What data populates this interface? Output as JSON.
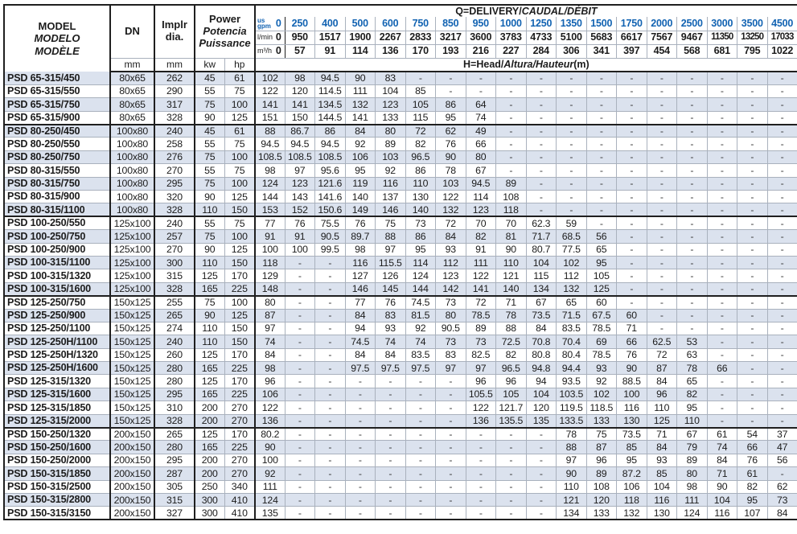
{
  "colors": {
    "accent_blue": "#1263b2",
    "row_shade": "#dbe2ee",
    "grid_light": "#a9b1bd",
    "border_dark": "#1f1f1f"
  },
  "table": {
    "header": {
      "model_lines": [
        "MODEL",
        "MODELO",
        "MODÈLE"
      ],
      "dn_label": "DN",
      "dn_unit": "mm",
      "impeller_lines": [
        "Implr",
        "dia."
      ],
      "impeller_unit": "mm",
      "power_lines": [
        "Power",
        "Potencia",
        "Puissance"
      ],
      "power_unit_kw": "kw",
      "power_unit_hp": "hp",
      "q_title_plain": "Q=DELIVERY/",
      "q_title_italic": "CAUDAL/DÉBIT",
      "h_title_plain": "H=Head/",
      "h_title_italic": "Altura/Hauteur",
      "h_title_suffix": "(m)",
      "gpm_label_line1": "us",
      "gpm_label_line2": "gpm",
      "lmin_label": "l/min",
      "m3h_label": "m³/h",
      "flow_gpm": [
        "0",
        "250",
        "400",
        "500",
        "600",
        "750",
        "850",
        "950",
        "1000",
        "1250",
        "1350",
        "1500",
        "1750",
        "2000",
        "2500",
        "3000",
        "3500",
        "4500"
      ],
      "flow_lmin": [
        "0",
        "950",
        "1517",
        "1900",
        "2267",
        "2833",
        "3217",
        "3600",
        "3783",
        "4733",
        "5100",
        "5683",
        "6617",
        "7567",
        "9467",
        "11350",
        "13250",
        "17033"
      ],
      "flow_m3h": [
        "0",
        "57",
        "91",
        "114",
        "136",
        "170",
        "193",
        "216",
        "227",
        "284",
        "306",
        "341",
        "397",
        "454",
        "568",
        "681",
        "795",
        "1022"
      ]
    },
    "rows": [
      {
        "model": "PSD 65-315/450",
        "dn": "80x65",
        "dia": "262",
        "kw": "45",
        "hp": "61",
        "group_start": false,
        "heads": [
          "102",
          "98",
          "94.5",
          "90",
          "83",
          "-",
          "-",
          "-",
          "-",
          "-",
          "-",
          "-",
          "-",
          "-",
          "-",
          "-",
          "-",
          "-"
        ]
      },
      {
        "model": "PSD 65-315/550",
        "dn": "80x65",
        "dia": "290",
        "kw": "55",
        "hp": "75",
        "group_start": false,
        "heads": [
          "122",
          "120",
          "114.5",
          "111",
          "104",
          "85",
          "-",
          "-",
          "-",
          "-",
          "-",
          "-",
          "-",
          "-",
          "-",
          "-",
          "-",
          "-"
        ]
      },
      {
        "model": "PSD 65-315/750",
        "dn": "80x65",
        "dia": "317",
        "kw": "75",
        "hp": "100",
        "group_start": false,
        "heads": [
          "141",
          "141",
          "134.5",
          "132",
          "123",
          "105",
          "86",
          "64",
          "-",
          "-",
          "-",
          "-",
          "-",
          "-",
          "-",
          "-",
          "-",
          "-"
        ]
      },
      {
        "model": "PSD 65-315/900",
        "dn": "80x65",
        "dia": "328",
        "kw": "90",
        "hp": "125",
        "group_start": false,
        "heads": [
          "151",
          "150",
          "144.5",
          "141",
          "133",
          "115",
          "95",
          "74",
          "-",
          "-",
          "-",
          "-",
          "-",
          "-",
          "-",
          "-",
          "-",
          "-"
        ]
      },
      {
        "model": "PSD 80-250/450",
        "dn": "100x80",
        "dia": "240",
        "kw": "45",
        "hp": "61",
        "group_start": true,
        "heads": [
          "88",
          "86.7",
          "86",
          "84",
          "80",
          "72",
          "62",
          "49",
          "-",
          "-",
          "-",
          "-",
          "-",
          "-",
          "-",
          "-",
          "-",
          "-"
        ]
      },
      {
        "model": "PSD 80-250/550",
        "dn": "100x80",
        "dia": "258",
        "kw": "55",
        "hp": "75",
        "group_start": false,
        "heads": [
          "94.5",
          "94.5",
          "94.5",
          "92",
          "89",
          "82",
          "76",
          "66",
          "-",
          "-",
          "-",
          "-",
          "-",
          "-",
          "-",
          "-",
          "-",
          "-"
        ]
      },
      {
        "model": "PSD 80-250/750",
        "dn": "100x80",
        "dia": "276",
        "kw": "75",
        "hp": "100",
        "group_start": false,
        "heads": [
          "108.5",
          "108.5",
          "108.5",
          "106",
          "103",
          "96.5",
          "90",
          "80",
          "-",
          "-",
          "-",
          "-",
          "-",
          "-",
          "-",
          "-",
          "-",
          "-"
        ]
      },
      {
        "model": "PSD 80-315/550",
        "dn": "100x80",
        "dia": "270",
        "kw": "55",
        "hp": "75",
        "group_start": false,
        "heads": [
          "98",
          "97",
          "95.6",
          "95",
          "92",
          "86",
          "78",
          "67",
          "-",
          "-",
          "-",
          "-",
          "-",
          "-",
          "-",
          "-",
          "-",
          "-"
        ]
      },
      {
        "model": "PSD 80-315/750",
        "dn": "100x80",
        "dia": "295",
        "kw": "75",
        "hp": "100",
        "group_start": false,
        "heads": [
          "124",
          "123",
          "121.6",
          "119",
          "116",
          "110",
          "103",
          "94.5",
          "89",
          "-",
          "-",
          "-",
          "-",
          "-",
          "-",
          "-",
          "-",
          "-"
        ]
      },
      {
        "model": "PSD 80-315/900",
        "dn": "100x80",
        "dia": "320",
        "kw": "90",
        "hp": "125",
        "group_start": false,
        "heads": [
          "144",
          "143",
          "141.6",
          "140",
          "137",
          "130",
          "122",
          "114",
          "108",
          "-",
          "-",
          "-",
          "-",
          "-",
          "-",
          "-",
          "-",
          "-"
        ]
      },
      {
        "model": "PSD 80-315/1100",
        "dn": "100x80",
        "dia": "328",
        "kw": "110",
        "hp": "150",
        "group_start": false,
        "heads": [
          "153",
          "152",
          "150.6",
          "149",
          "146",
          "140",
          "132",
          "123",
          "118",
          "-",
          "-",
          "-",
          "-",
          "-",
          "-",
          "-",
          "-",
          "-"
        ]
      },
      {
        "model": "PSD 100-250/550",
        "dn": "125x100",
        "dia": "240",
        "kw": "55",
        "hp": "75",
        "group_start": true,
        "heads": [
          "77",
          "76",
          "75.5",
          "76",
          "75",
          "73",
          "72",
          "70",
          "70",
          "62.3",
          "59",
          "-",
          "-",
          "-",
          "-",
          "-",
          "-",
          "-"
        ]
      },
      {
        "model": "PSD 100-250/750",
        "dn": "125x100",
        "dia": "257",
        "kw": "75",
        "hp": "100",
        "group_start": false,
        "heads": [
          "91",
          "91",
          "90.5",
          "89.7",
          "88",
          "86",
          "84",
          "82",
          "81",
          "71.7",
          "68.5",
          "56",
          "-",
          "-",
          "-",
          "-",
          "-",
          "-"
        ]
      },
      {
        "model": "PSD 100-250/900",
        "dn": "125x100",
        "dia": "270",
        "kw": "90",
        "hp": "125",
        "group_start": false,
        "heads": [
          "100",
          "100",
          "99.5",
          "98",
          "97",
          "95",
          "93",
          "91",
          "90",
          "80.7",
          "77.5",
          "65",
          "-",
          "-",
          "-",
          "-",
          "-",
          "-"
        ]
      },
      {
        "model": "PSD 100-315/1100",
        "dn": "125x100",
        "dia": "300",
        "kw": "110",
        "hp": "150",
        "group_start": false,
        "heads": [
          "118",
          "-",
          "-",
          "116",
          "115.5",
          "114",
          "112",
          "111",
          "110",
          "104",
          "102",
          "95",
          "-",
          "-",
          "-",
          "-",
          "-",
          "-"
        ]
      },
      {
        "model": "PSD 100-315/1320",
        "dn": "125x100",
        "dia": "315",
        "kw": "125",
        "hp": "170",
        "group_start": false,
        "heads": [
          "129",
          "-",
          "-",
          "127",
          "126",
          "124",
          "123",
          "122",
          "121",
          "115",
          "112",
          "105",
          "-",
          "-",
          "-",
          "-",
          "-",
          "-"
        ]
      },
      {
        "model": "PSD 100-315/1600",
        "dn": "125x100",
        "dia": "328",
        "kw": "165",
        "hp": "225",
        "group_start": false,
        "heads": [
          "148",
          "-",
          "-",
          "146",
          "145",
          "144",
          "142",
          "141",
          "140",
          "134",
          "132",
          "125",
          "-",
          "-",
          "-",
          "-",
          "-",
          "-"
        ]
      },
      {
        "model": "PSD 125-250/750",
        "dn": "150x125",
        "dia": "255",
        "kw": "75",
        "hp": "100",
        "group_start": true,
        "heads": [
          "80",
          "-",
          "-",
          "77",
          "76",
          "74.5",
          "73",
          "72",
          "71",
          "67",
          "65",
          "60",
          "-",
          "-",
          "-",
          "-",
          "-",
          "-"
        ]
      },
      {
        "model": "PSD 125-250/900",
        "dn": "150x125",
        "dia": "265",
        "kw": "90",
        "hp": "125",
        "group_start": false,
        "heads": [
          "87",
          "-",
          "-",
          "84",
          "83",
          "81.5",
          "80",
          "78.5",
          "78",
          "73.5",
          "71.5",
          "67.5",
          "60",
          "-",
          "-",
          "-",
          "-",
          "-"
        ]
      },
      {
        "model": "PSD 125-250/1100",
        "dn": "150x125",
        "dia": "274",
        "kw": "110",
        "hp": "150",
        "group_start": false,
        "heads": [
          "97",
          "-",
          "-",
          "94",
          "93",
          "92",
          "90.5",
          "89",
          "88",
          "84",
          "83.5",
          "78.5",
          "71",
          "-",
          "-",
          "-",
          "-",
          "-"
        ]
      },
      {
        "model": "PSD 125-250H/1100",
        "dn": "150x125",
        "dia": "240",
        "kw": "110",
        "hp": "150",
        "group_start": false,
        "heads": [
          "74",
          "-",
          "-",
          "74.5",
          "74",
          "74",
          "73",
          "73",
          "72.5",
          "70.8",
          "70.4",
          "69",
          "66",
          "62.5",
          "53",
          "-",
          "-",
          "-"
        ]
      },
      {
        "model": "PSD 125-250H/1320",
        "dn": "150x125",
        "dia": "260",
        "kw": "125",
        "hp": "170",
        "group_start": false,
        "heads": [
          "84",
          "-",
          "-",
          "84",
          "84",
          "83.5",
          "83",
          "82.5",
          "82",
          "80.8",
          "80.4",
          "78.5",
          "76",
          "72",
          "63",
          "-",
          "-",
          "-"
        ]
      },
      {
        "model": "PSD 125-250H/1600",
        "dn": "150x125",
        "dia": "280",
        "kw": "165",
        "hp": "225",
        "group_start": false,
        "heads": [
          "98",
          "-",
          "-",
          "97.5",
          "97.5",
          "97.5",
          "97",
          "97",
          "96.5",
          "94.8",
          "94.4",
          "93",
          "90",
          "87",
          "78",
          "66",
          "-",
          "-"
        ]
      },
      {
        "model": "PSD 125-315/1320",
        "dn": "150x125",
        "dia": "280",
        "kw": "125",
        "hp": "170",
        "group_start": false,
        "heads": [
          "96",
          "-",
          "-",
          "-",
          "-",
          "-",
          "-",
          "96",
          "96",
          "94",
          "93.5",
          "92",
          "88.5",
          "84",
          "65",
          "-",
          "-",
          "-"
        ]
      },
      {
        "model": "PSD 125-315/1600",
        "dn": "150x125",
        "dia": "295",
        "kw": "165",
        "hp": "225",
        "group_start": false,
        "heads": [
          "106",
          "-",
          "-",
          "-",
          "-",
          "-",
          "-",
          "105.5",
          "105",
          "104",
          "103.5",
          "102",
          "100",
          "96",
          "82",
          "-",
          "-",
          "-"
        ]
      },
      {
        "model": "PSD 125-315/1850",
        "dn": "150x125",
        "dia": "310",
        "kw": "200",
        "hp": "270",
        "group_start": false,
        "heads": [
          "122",
          "-",
          "-",
          "-",
          "-",
          "-",
          "-",
          "122",
          "121.7",
          "120",
          "119.5",
          "118.5",
          "116",
          "110",
          "95",
          "-",
          "-",
          "-"
        ]
      },
      {
        "model": "PSD 125-315/2000",
        "dn": "150x125",
        "dia": "328",
        "kw": "200",
        "hp": "270",
        "group_start": false,
        "heads": [
          "136",
          "-",
          "-",
          "-",
          "-",
          "-",
          "-",
          "136",
          "135.5",
          "135",
          "133.5",
          "133",
          "130",
          "125",
          "110",
          "-",
          "-",
          "-"
        ]
      },
      {
        "model": "PSD 150-250/1320",
        "dn": "200x150",
        "dia": "265",
        "kw": "125",
        "hp": "170",
        "group_start": true,
        "heads": [
          "80.2",
          "-",
          "-",
          "-",
          "-",
          "-",
          "-",
          "-",
          "-",
          "-",
          "78",
          "75",
          "73.5",
          "71",
          "67",
          "61",
          "54",
          "37"
        ]
      },
      {
        "model": "PSD 150-250/1600",
        "dn": "200x150",
        "dia": "280",
        "kw": "165",
        "hp": "225",
        "group_start": false,
        "heads": [
          "90",
          "-",
          "-",
          "-",
          "-",
          "-",
          "-",
          "-",
          "-",
          "-",
          "88",
          "87",
          "85",
          "84",
          "79",
          "74",
          "66",
          "47"
        ]
      },
      {
        "model": "PSD 150-250/2000",
        "dn": "200x150",
        "dia": "295",
        "kw": "200",
        "hp": "270",
        "group_start": false,
        "heads": [
          "100",
          "-",
          "-",
          "-",
          "-",
          "-",
          "-",
          "-",
          "-",
          "-",
          "97",
          "96",
          "95",
          "93",
          "89",
          "84",
          "76",
          "56"
        ]
      },
      {
        "model": "PSD 150-315/1850",
        "dn": "200x150",
        "dia": "287",
        "kw": "200",
        "hp": "270",
        "group_start": false,
        "heads": [
          "92",
          "-",
          "-",
          "-",
          "-",
          "-",
          "-",
          "-",
          "-",
          "-",
          "90",
          "89",
          "87.2",
          "85",
          "80",
          "71",
          "61",
          "-"
        ]
      },
      {
        "model": "PSD 150-315/2500",
        "dn": "200x150",
        "dia": "305",
        "kw": "250",
        "hp": "340",
        "group_start": false,
        "heads": [
          "111",
          "-",
          "-",
          "-",
          "-",
          "-",
          "-",
          "-",
          "-",
          "-",
          "110",
          "108",
          "106",
          "104",
          "98",
          "90",
          "82",
          "62"
        ]
      },
      {
        "model": "PSD 150-315/2800",
        "dn": "200x150",
        "dia": "315",
        "kw": "300",
        "hp": "410",
        "group_start": false,
        "heads": [
          "124",
          "-",
          "-",
          "-",
          "-",
          "-",
          "-",
          "-",
          "-",
          "-",
          "121",
          "120",
          "118",
          "116",
          "111",
          "104",
          "95",
          "73"
        ]
      },
      {
        "model": "PSD 150-315/3150",
        "dn": "200x150",
        "dia": "327",
        "kw": "300",
        "hp": "410",
        "group_start": false,
        "heads": [
          "135",
          "-",
          "-",
          "-",
          "-",
          "-",
          "-",
          "-",
          "-",
          "-",
          "134",
          "133",
          "132",
          "130",
          "124",
          "116",
          "107",
          "84"
        ]
      }
    ]
  }
}
